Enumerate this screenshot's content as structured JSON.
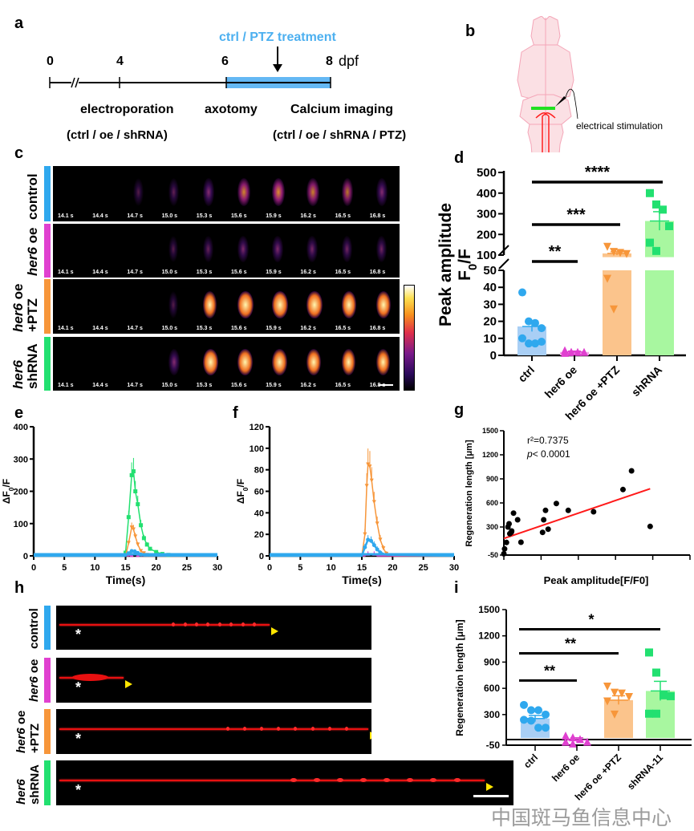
{
  "panel_labels": {
    "a": "a",
    "b": "b",
    "c": "c",
    "d": "d",
    "e": "e",
    "f": "f",
    "g": "g",
    "h": "h",
    "i": "i"
  },
  "timeline": {
    "treatment": "ctrl / PTZ treatment",
    "ticks": [
      "0",
      "4",
      "6",
      "8"
    ],
    "unit": "dpf",
    "events": [
      "electroporation",
      "axotomy",
      "Calcium imaging"
    ],
    "conditions_left": "(ctrl / oe / shRNA)",
    "conditions_right": "(ctrl / oe / shRNA / PTZ)",
    "bar_color": "#64b8f4"
  },
  "brain": {
    "stimulation_label": "electrical stimulation"
  },
  "groups": {
    "colors": {
      "ctrl": "#2fa8ee",
      "oe": "#e040d0",
      "ptz": "#f7963a",
      "shrna": "#22e070"
    },
    "row_labels": [
      {
        "italic": "",
        "text": "control"
      },
      {
        "italic": "her6",
        "text": " oe"
      },
      {
        "italic": "her6",
        "text": " oe",
        "line2": "+PTZ"
      },
      {
        "italic": "her6",
        "text": "",
        "line2": "shRNA"
      }
    ],
    "h_row_labels": [
      {
        "italic": "",
        "text": "control"
      },
      {
        "italic": "her6",
        "text": " oe"
      },
      {
        "italic": "her6",
        "text": " oe",
        "line2": "+PTZ"
      },
      {
        "italic": "her6",
        "text": "",
        "line2": "shRNA"
      }
    ],
    "h_prefix_control": "her6 oe"
  },
  "calcium_imaging": {
    "timestamps": [
      "14.1 s",
      "14.4 s",
      "14.7 s",
      "15.0 s",
      "15.3 s",
      "15.6 s",
      "15.9 s",
      "16.2 s",
      "16.5 s",
      "16.8 s"
    ]
  },
  "chart_data": [
    {
      "id": "d",
      "type": "bar",
      "ylabel": "Peak amplitude",
      "ylabel2": "F0/F",
      "categories": [
        "ctrl",
        "her6 oe",
        "her6 oe +PTZ",
        "shRNA"
      ],
      "means": [
        17,
        2,
        108,
        265
      ],
      "sem": [
        3,
        0.5,
        8,
        45
      ],
      "points": [
        [
          37,
          20,
          19,
          16,
          10,
          7,
          7,
          8
        ],
        [
          3,
          2,
          2,
          2,
          1.5,
          2
        ],
        [
          140,
          115,
          110,
          105,
          45,
          27
        ],
        [
          400,
          345,
          320,
          240,
          160,
          120
        ]
      ],
      "yticks": [
        0,
        10,
        20,
        30,
        40,
        50,
        100,
        200,
        300,
        400,
        500
      ],
      "ylim": [
        0,
        500
      ],
      "axis_break": [
        50,
        100
      ],
      "significance": [
        {
          "from": "ctrl",
          "to": "her6 oe",
          "label": "**"
        },
        {
          "from": "ctrl",
          "to": "her6 oe +PTZ",
          "label": "***"
        },
        {
          "from": "ctrl",
          "to": "shRNA",
          "label": "****"
        }
      ]
    },
    {
      "id": "e",
      "type": "line",
      "xlabel": "Time(s)",
      "ylabel": "ΔF0/F",
      "xlim": [
        0,
        30
      ],
      "ylim": [
        0,
        400
      ],
      "xticks": [
        0,
        5,
        10,
        15,
        20,
        25,
        30
      ],
      "yticks": [
        0,
        100,
        200,
        300,
        400
      ],
      "series": [
        {
          "group": "shrna",
          "x": [
            0,
            14.5,
            15,
            15.5,
            16,
            16.3,
            16.6,
            17,
            17.5,
            18,
            18.5,
            19,
            20,
            21,
            22,
            23
          ],
          "y": [
            0,
            0,
            10,
            120,
            250,
            262,
            200,
            160,
            95,
            55,
            35,
            22,
            12,
            6,
            3,
            0
          ]
        },
        {
          "group": "ptz",
          "x": [
            0,
            15,
            15.5,
            16,
            16.3,
            16.6,
            17,
            17.5,
            18,
            18.5,
            19,
            30
          ],
          "y": [
            0,
            0,
            40,
            88,
            82,
            60,
            35,
            15,
            8,
            3,
            0,
            0
          ]
        },
        {
          "group": "oe",
          "x": [
            0,
            15.5,
            16,
            17,
            17.5,
            30
          ],
          "y": [
            0,
            0,
            3,
            3,
            0,
            0
          ]
        },
        {
          "group": "ctrl",
          "x": [
            0,
            15,
            15.5,
            16,
            16.5,
            17,
            17.5,
            18,
            30
          ],
          "y": [
            0,
            0,
            8,
            15,
            14,
            9,
            4,
            1,
            0
          ]
        }
      ]
    },
    {
      "id": "f",
      "type": "line",
      "xlabel": "Time(s)",
      "ylabel": "ΔF0/F",
      "xlim": [
        0,
        30
      ],
      "ylim": [
        0,
        120
      ],
      "xticks": [
        0,
        5,
        10,
        15,
        20,
        25,
        30
      ],
      "yticks": [
        0,
        20,
        40,
        60,
        80,
        100,
        120
      ],
      "series": [
        {
          "group": "ptz",
          "x": [
            0,
            15,
            15.5,
            15.8,
            16,
            16.3,
            16.6,
            17,
            17.5,
            18,
            18.5,
            19,
            20,
            30
          ],
          "y": [
            0,
            0,
            20,
            65,
            85,
            83,
            70,
            50,
            30,
            15,
            7,
            2,
            0,
            0
          ]
        },
        {
          "group": "oe",
          "x": [
            0,
            15.5,
            16,
            17,
            17.5,
            30
          ],
          "y": [
            0,
            0,
            2,
            2,
            0,
            0
          ]
        },
        {
          "group": "ctrl",
          "x": [
            0,
            15,
            15.5,
            16,
            16.5,
            17,
            17.5,
            18,
            19,
            30
          ],
          "y": [
            0,
            0,
            8,
            15,
            14,
            10,
            6,
            3,
            1,
            0
          ]
        }
      ]
    },
    {
      "id": "g",
      "type": "scatter",
      "xlabel": "Peak amplitude[F/F0]",
      "ylabel": "Regeneration length [μm]",
      "xlim": [
        0,
        500
      ],
      "ylim": [
        -50,
        1500
      ],
      "xticks": [
        0,
        100,
        200,
        300,
        400,
        500
      ],
      "yticks": [
        -50,
        300,
        600,
        900,
        1200,
        1500
      ],
      "annotation_r2": "r²=0.7375",
      "annotation_p_italic": "p",
      "annotation_p": "< 0.0001",
      "x": [
        0,
        2,
        7,
        11,
        14,
        16,
        20,
        21,
        26,
        37,
        46,
        104,
        107,
        112,
        119,
        141,
        173,
        241,
        320,
        343,
        393
      ],
      "y": [
        -34,
        27,
        107,
        300,
        340,
        217,
        233,
        250,
        473,
        390,
        110,
        233,
        390,
        507,
        273,
        593,
        507,
        490,
        767,
        1000,
        307
      ],
      "fit": {
        "x": [
          0,
          393
        ],
        "y": [
          157,
          777
        ],
        "color": "#ff1a1a"
      }
    },
    {
      "id": "i",
      "type": "bar",
      "ylabel": "Regeneration length [μm]",
      "categories": [
        "ctrl",
        "her6 oe",
        "her6 oe +PTZ",
        "shRNA-11"
      ],
      "means": [
        255,
        10,
        465,
        570
      ],
      "sem": [
        35,
        25,
        50,
        110
      ],
      "points": [
        [
          410,
          350,
          350,
          300,
          240,
          230,
          150,
          150
        ],
        [
          60,
          40,
          20,
          -10,
          -10,
          -30
        ],
        [
          620,
          550,
          540,
          500,
          450,
          300
        ],
        [
          1010,
          780,
          520,
          510,
          310,
          310
        ]
      ],
      "yticks": [
        -50,
        300,
        600,
        900,
        1200,
        1500
      ],
      "ylim": [
        -50,
        1500
      ],
      "significance": [
        {
          "from": "ctrl",
          "to": "her6 oe",
          "label": "**"
        },
        {
          "from": "ctrl",
          "to": "her6 oe +PTZ",
          "label": "**"
        },
        {
          "from": "ctrl",
          "to": "shRNA-11",
          "label": "*"
        }
      ]
    }
  ],
  "watermark": "中国斑马鱼信息中心"
}
